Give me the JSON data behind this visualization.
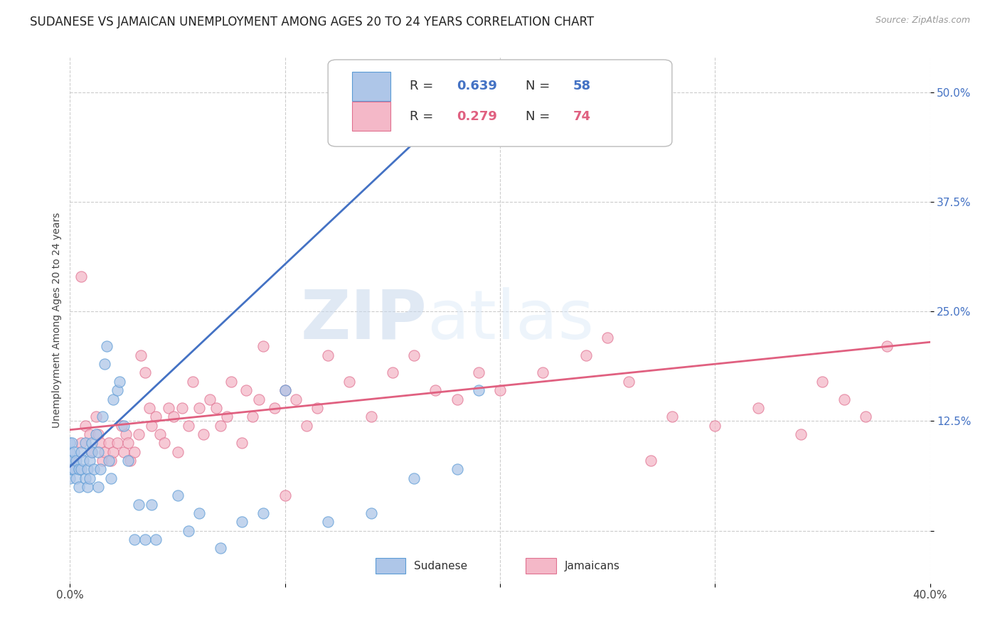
{
  "title": "SUDANESE VS JAMAICAN UNEMPLOYMENT AMONG AGES 20 TO 24 YEARS CORRELATION CHART",
  "source": "Source: ZipAtlas.com",
  "ylabel": "Unemployment Among Ages 20 to 24 years",
  "xlim": [
    0.0,
    0.4
  ],
  "ylim": [
    -0.06,
    0.54
  ],
  "x_ticks": [
    0.0,
    0.1,
    0.2,
    0.3,
    0.4
  ],
  "x_tick_labels": [
    "0.0%",
    "",
    "",
    "",
    "40.0%"
  ],
  "y_ticks": [
    0.0,
    0.125,
    0.25,
    0.375,
    0.5
  ],
  "y_tick_labels": [
    "",
    "12.5%",
    "25.0%",
    "37.5%",
    "50.0%"
  ],
  "background_color": "#ffffff",
  "grid_color": "#cccccc",
  "sudanese_face_color": "#aec6e8",
  "sudanese_edge_color": "#5b9bd5",
  "jamaican_face_color": "#f4b8c8",
  "jamaican_edge_color": "#e07090",
  "sudanese_line_color": "#4472c4",
  "jamaican_line_color": "#e06080",
  "sudanese_R": 0.639,
  "sudanese_N": 58,
  "jamaican_R": 0.279,
  "jamaican_N": 74,
  "legend_label_sudanese": "Sudanese",
  "legend_label_jamaican": "Jamaicans",
  "watermark_zip": "ZIP",
  "watermark_atlas": "atlas",
  "title_fontsize": 12,
  "axis_label_fontsize": 10,
  "tick_fontsize": 11,
  "sudanese_x": [
    0.0,
    0.0,
    0.0,
    0.0,
    0.0,
    0.001,
    0.001,
    0.001,
    0.002,
    0.002,
    0.003,
    0.003,
    0.004,
    0.004,
    0.005,
    0.005,
    0.006,
    0.007,
    0.007,
    0.008,
    0.008,
    0.009,
    0.009,
    0.01,
    0.01,
    0.011,
    0.012,
    0.013,
    0.013,
    0.014,
    0.015,
    0.016,
    0.017,
    0.018,
    0.019,
    0.02,
    0.022,
    0.023,
    0.025,
    0.027,
    0.03,
    0.032,
    0.035,
    0.038,
    0.04,
    0.05,
    0.055,
    0.06,
    0.07,
    0.08,
    0.09,
    0.1,
    0.12,
    0.14,
    0.155,
    0.16,
    0.18,
    0.19
  ],
  "sudanese_y": [
    0.1,
    0.09,
    0.08,
    0.07,
    0.06,
    0.1,
    0.08,
    0.07,
    0.09,
    0.07,
    0.08,
    0.06,
    0.07,
    0.05,
    0.09,
    0.07,
    0.08,
    0.06,
    0.1,
    0.07,
    0.05,
    0.08,
    0.06,
    0.1,
    0.09,
    0.07,
    0.11,
    0.05,
    0.09,
    0.07,
    0.13,
    0.19,
    0.21,
    0.08,
    0.06,
    0.15,
    0.16,
    0.17,
    0.12,
    0.08,
    -0.01,
    0.03,
    -0.01,
    0.03,
    -0.01,
    0.04,
    0.0,
    0.02,
    -0.02,
    0.01,
    0.02,
    0.16,
    0.01,
    0.02,
    0.48,
    0.06,
    0.07,
    0.16
  ],
  "jamaican_x": [
    0.005,
    0.007,
    0.009,
    0.01,
    0.012,
    0.013,
    0.014,
    0.015,
    0.016,
    0.018,
    0.019,
    0.02,
    0.022,
    0.024,
    0.025,
    0.026,
    0.027,
    0.028,
    0.03,
    0.032,
    0.033,
    0.035,
    0.037,
    0.038,
    0.04,
    0.042,
    0.044,
    0.046,
    0.048,
    0.05,
    0.052,
    0.055,
    0.057,
    0.06,
    0.062,
    0.065,
    0.068,
    0.07,
    0.073,
    0.075,
    0.08,
    0.082,
    0.085,
    0.088,
    0.09,
    0.095,
    0.1,
    0.105,
    0.11,
    0.115,
    0.12,
    0.13,
    0.14,
    0.15,
    0.16,
    0.17,
    0.18,
    0.19,
    0.2,
    0.22,
    0.24,
    0.25,
    0.26,
    0.27,
    0.28,
    0.3,
    0.32,
    0.34,
    0.35,
    0.36,
    0.37,
    0.38,
    0.005,
    0.1
  ],
  "jamaican_y": [
    0.1,
    0.12,
    0.11,
    0.09,
    0.13,
    0.11,
    0.1,
    0.08,
    0.09,
    0.1,
    0.08,
    0.09,
    0.1,
    0.12,
    0.09,
    0.11,
    0.1,
    0.08,
    0.09,
    0.11,
    0.2,
    0.18,
    0.14,
    0.12,
    0.13,
    0.11,
    0.1,
    0.14,
    0.13,
    0.09,
    0.14,
    0.12,
    0.17,
    0.14,
    0.11,
    0.15,
    0.14,
    0.12,
    0.13,
    0.17,
    0.1,
    0.16,
    0.13,
    0.15,
    0.21,
    0.14,
    0.16,
    0.15,
    0.12,
    0.14,
    0.2,
    0.17,
    0.13,
    0.18,
    0.2,
    0.16,
    0.15,
    0.18,
    0.16,
    0.18,
    0.2,
    0.22,
    0.17,
    0.08,
    0.13,
    0.12,
    0.14,
    0.11,
    0.17,
    0.15,
    0.13,
    0.21,
    0.29,
    0.04
  ],
  "sud_line_x0": 0.0,
  "sud_line_y0": 0.073,
  "sud_line_x1": 0.185,
  "sud_line_y1": 0.5,
  "jam_line_x0": 0.0,
  "jam_line_y0": 0.115,
  "jam_line_x1": 0.4,
  "jam_line_y1": 0.215
}
